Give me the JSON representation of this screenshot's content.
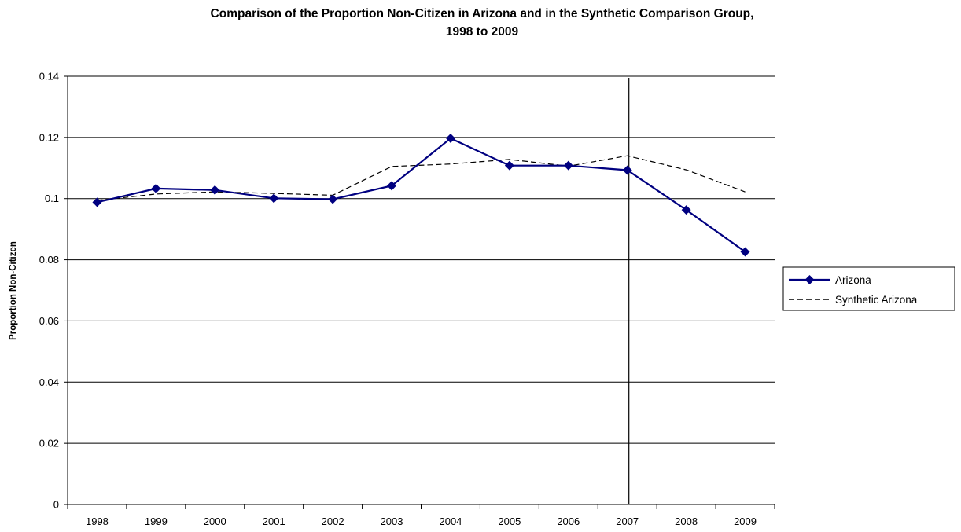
{
  "chart_data": {
    "type": "line",
    "title_line1": "Comparison of the Proportion Non-Citizen in Arizona and in the Synthetic Comparison Group,",
    "title_line2": "1998 to 2009",
    "xlabel": "",
    "ylabel": "Proportion Non-Citizen",
    "categories": [
      "1998",
      "1999",
      "2000",
      "2001",
      "2002",
      "2003",
      "2004",
      "2005",
      "2006",
      "2007",
      "2008",
      "2009"
    ],
    "ylim": [
      0,
      0.14
    ],
    "yticks": [
      "0",
      "0.02",
      "0.04",
      "0.06",
      "0.08",
      "0.1",
      "0.12",
      "0.14"
    ],
    "grid": "horizontal",
    "reference_line": "2007",
    "legend_position": "right",
    "series": [
      {
        "name": "Arizona",
        "style": "solid-with-diamond-markers",
        "color": "#000080",
        "values": [
          0.0988,
          0.1033,
          0.1028,
          0.1001,
          0.0998,
          0.1042,
          0.1197,
          0.1108,
          0.1108,
          0.1093,
          0.0963,
          0.0826
        ]
      },
      {
        "name": "Synthetic Arizona",
        "style": "dashed",
        "color": "#000000",
        "values": [
          0.0994,
          0.1015,
          0.1022,
          0.1017,
          0.1011,
          0.1105,
          0.1113,
          0.1128,
          0.1106,
          0.114,
          0.1094,
          0.1022
        ]
      }
    ]
  }
}
